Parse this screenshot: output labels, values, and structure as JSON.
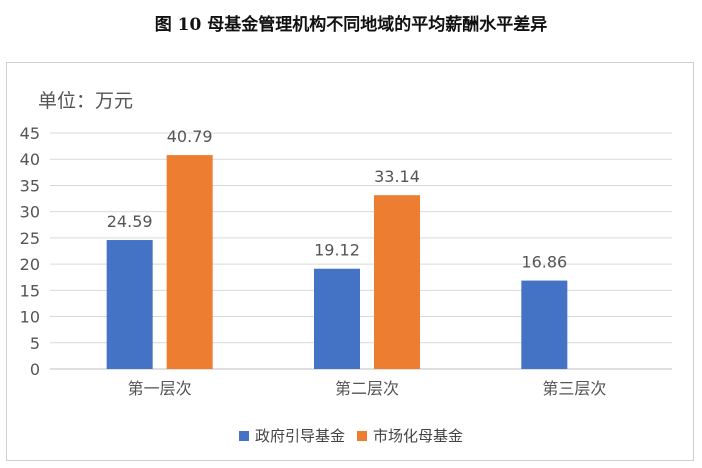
{
  "page_title": "图 10  母基金管理机构不同地域的平均薪酬水平差异",
  "unit_label": "单位：万元",
  "colors": {
    "government": "#4472C4",
    "market": "#ED7D31",
    "grid": "#d9d9d9",
    "axis": "#bfbfbf",
    "text": "#555555"
  },
  "chart_data": {
    "type": "bar",
    "title": "",
    "categories": [
      "第一层次",
      "第二层次",
      "第三层次"
    ],
    "series": [
      {
        "name": "政府引导基金",
        "values": [
          24.59,
          19.12,
          16.86
        ],
        "labels": [
          "24.59",
          "19.12",
          "16.86"
        ]
      },
      {
        "name": "市场化母基金",
        "values": [
          40.79,
          33.14,
          null
        ],
        "labels": [
          "40.79",
          "33.14",
          ""
        ]
      }
    ],
    "ylim": [
      0,
      45
    ],
    "yticks": [
      0,
      5,
      10,
      15,
      20,
      25,
      30,
      35,
      40,
      45
    ],
    "grid": true,
    "legend": "bottom"
  }
}
